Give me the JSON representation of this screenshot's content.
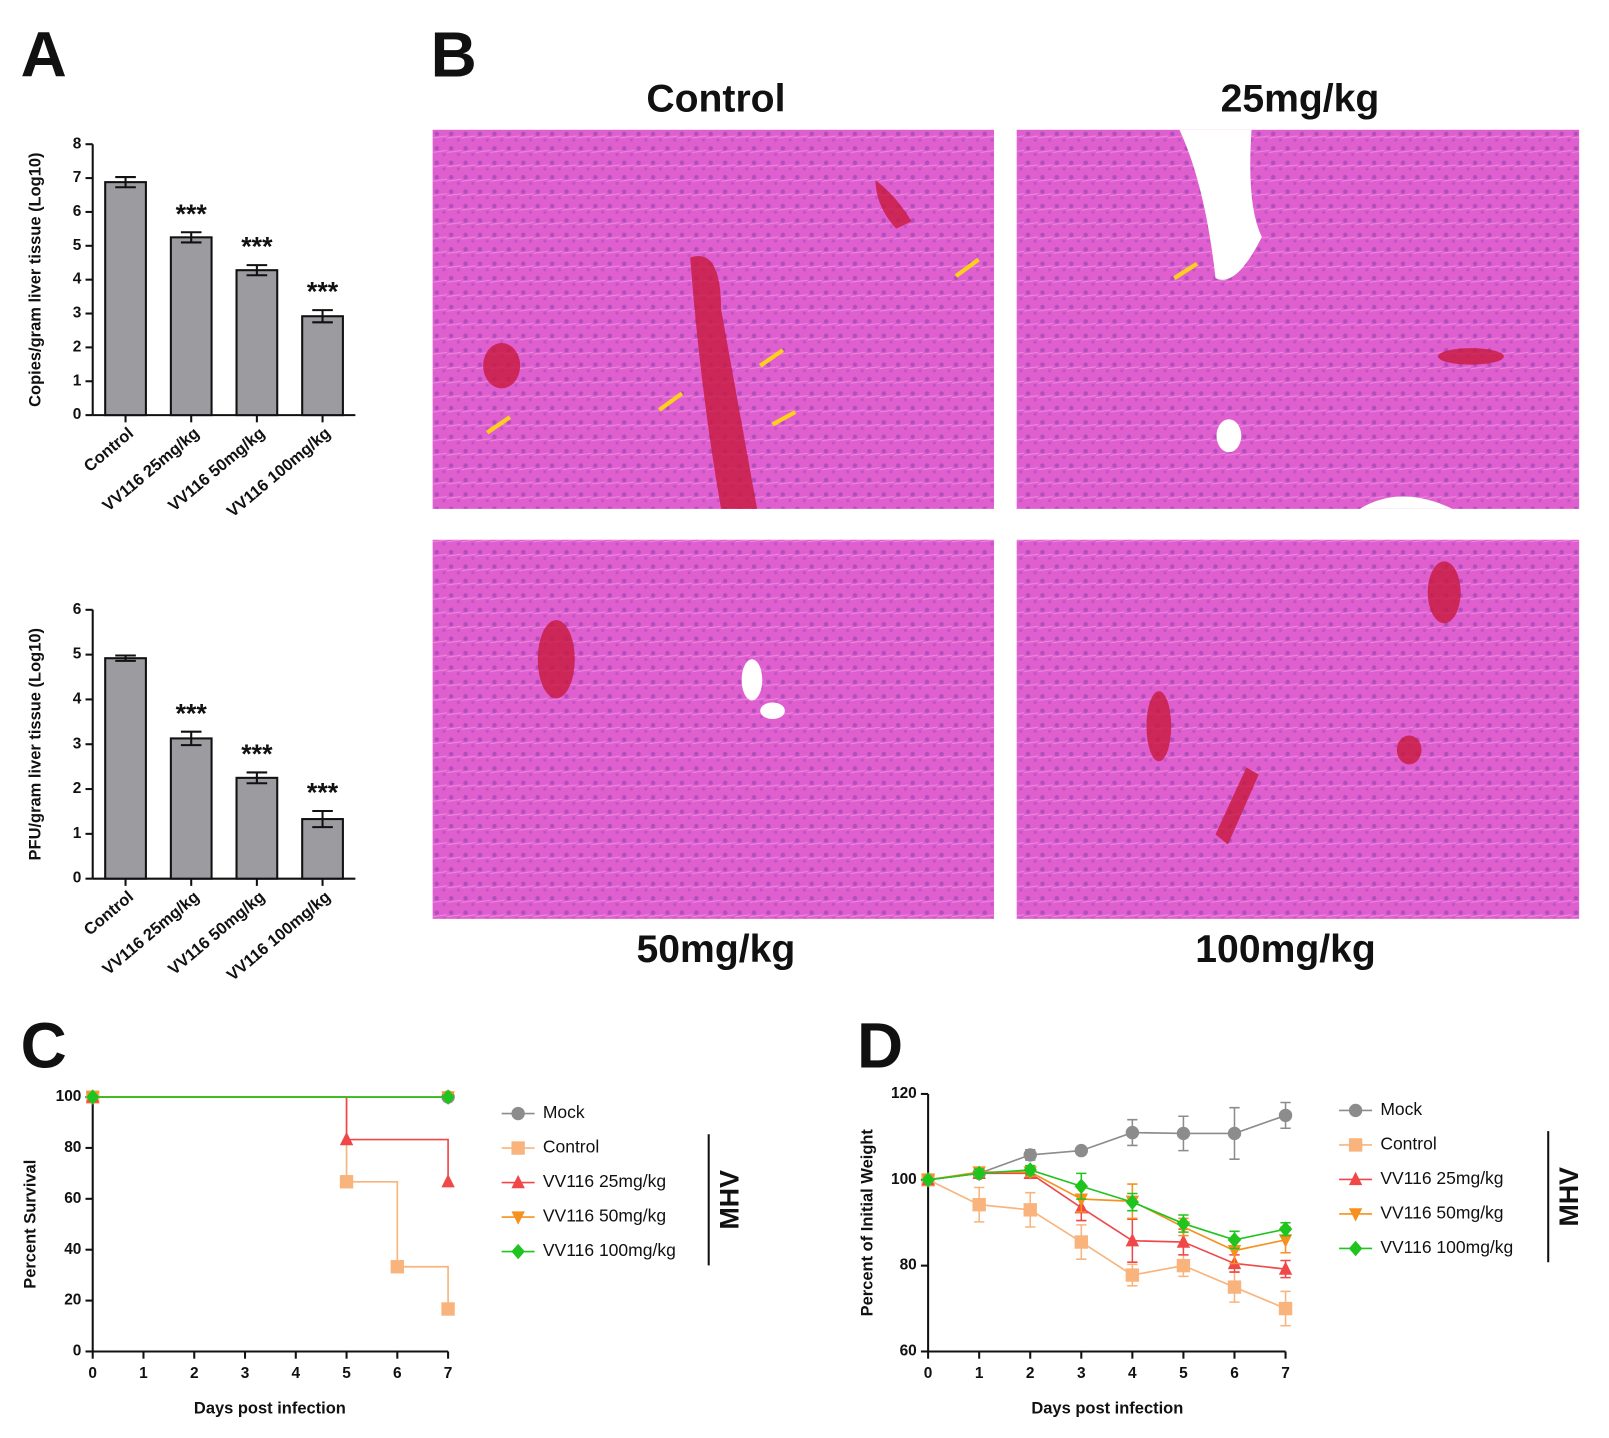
{
  "panel_labels": [
    "A",
    "B",
    "C",
    "D"
  ],
  "histology": {
    "titles": [
      "Control",
      "25mg/kg",
      "50mg/kg",
      "100mg/kg"
    ]
  },
  "chart_data": [
    {
      "type": "bar",
      "ylabel": "Copies/gram liver tissue (Log10)",
      "categories": [
        "Control",
        "VV116 25mg/kg",
        "VV116 50mg/kg",
        "VV116 100mg/kg"
      ],
      "values": [
        6.88,
        5.25,
        4.28,
        2.92
      ],
      "errors": [
        0.15,
        0.15,
        0.15,
        0.18
      ],
      "significance": [
        null,
        "***",
        "***",
        "***"
      ],
      "color": "#9b9ba0",
      "ylim": [
        0,
        8
      ],
      "yticks": [
        0,
        1,
        2,
        3,
        4,
        5,
        6,
        7,
        8
      ]
    },
    {
      "type": "bar",
      "ylabel": "PFU/gram liver tissue (Log10)",
      "categories": [
        "Control",
        "VV116 25mg/kg",
        "VV116 50mg/kg",
        "VV116 100mg/kg"
      ],
      "values": [
        4.92,
        3.13,
        2.25,
        1.33
      ],
      "errors": [
        0.06,
        0.15,
        0.12,
        0.18
      ],
      "significance": [
        null,
        "***",
        "***",
        "***"
      ],
      "color": "#9b9ba0",
      "ylim": [
        0,
        6
      ],
      "yticks": [
        0,
        1,
        2,
        3,
        4,
        5,
        6
      ]
    },
    {
      "type": "line",
      "step": true,
      "xlabel": "Days post infection",
      "ylabel": "Percent Survival",
      "x": [
        0,
        1,
        2,
        3,
        4,
        5,
        6,
        7
      ],
      "xlim": [
        0,
        7
      ],
      "xticks": [
        0,
        1,
        2,
        3,
        4,
        5,
        6,
        7
      ],
      "ylim": [
        0,
        100
      ],
      "yticks": [
        0,
        20,
        40,
        60,
        80,
        100
      ],
      "legend_group": "MHV",
      "series": [
        {
          "name": "Mock",
          "color": "#8c8c8c",
          "marker": "circle",
          "values": [
            100,
            100,
            100,
            100,
            100,
            100,
            100,
            100
          ]
        },
        {
          "name": "Control",
          "color": "#f8b47c",
          "marker": "square",
          "values": [
            100,
            100,
            100,
            100,
            100,
            66.7,
            33.3,
            16.7
          ]
        },
        {
          "name": "VV116 25mg/kg",
          "color": "#f04848",
          "marker": "triangle-up",
          "values": [
            100,
            100,
            100,
            100,
            100,
            83.3,
            83.3,
            66.7
          ]
        },
        {
          "name": "VV116 50mg/kg",
          "color": "#f7901c",
          "marker": "triangle-down",
          "values": [
            100,
            100,
            100,
            100,
            100,
            100,
            100,
            100
          ]
        },
        {
          "name": "VV116 100mg/kg",
          "color": "#1fc41f",
          "marker": "diamond",
          "values": [
            100,
            100,
            100,
            100,
            100,
            100,
            100,
            100
          ]
        }
      ]
    },
    {
      "type": "line",
      "xlabel": "Days post infection",
      "ylabel": "Percent of Initial Weight",
      "x": [
        0,
        1,
        2,
        3,
        4,
        5,
        6,
        7
      ],
      "xlim": [
        0,
        7
      ],
      "xticks": [
        0,
        1,
        2,
        3,
        4,
        5,
        6,
        7
      ],
      "ylim": [
        60,
        120
      ],
      "yticks": [
        60,
        80,
        100,
        120
      ],
      "legend_group": "MHV",
      "series": [
        {
          "name": "Mock",
          "color": "#8c8c8c",
          "marker": "circle",
          "values": [
            100,
            101.5,
            105.8,
            106.8,
            111,
            110.8,
            110.8,
            115
          ],
          "errors": [
            0,
            1,
            1.2,
            0.5,
            3,
            4,
            6,
            3
          ]
        },
        {
          "name": "Control",
          "color": "#f8b47c",
          "marker": "square",
          "values": [
            100,
            94.2,
            93,
            85.5,
            77.8,
            80,
            75,
            70
          ],
          "errors": [
            0,
            4,
            4,
            4,
            2.5,
            2.5,
            3.5,
            4
          ]
        },
        {
          "name": "VV116 25mg/kg",
          "color": "#f04848",
          "marker": "triangle-up",
          "values": [
            100,
            101.5,
            101.5,
            93.5,
            85.8,
            85.5,
            80.5,
            79.2
          ],
          "errors": [
            0,
            1,
            1,
            3,
            5,
            3,
            2,
            2
          ]
        },
        {
          "name": "VV116 50mg/kg",
          "color": "#f7901c",
          "marker": "triangle-down",
          "values": [
            100,
            101.8,
            101.8,
            95.5,
            95,
            89,
            83.5,
            86
          ],
          "errors": [
            0,
            1,
            1,
            3,
            4,
            2,
            3,
            3
          ]
        },
        {
          "name": "VV116 100mg/kg",
          "color": "#1fc41f",
          "marker": "diamond",
          "values": [
            100,
            101.5,
            102.3,
            98.5,
            94.8,
            89.8,
            86,
            88.5
          ],
          "errors": [
            0,
            1,
            1,
            3,
            2,
            2,
            2,
            1.5
          ]
        }
      ]
    }
  ]
}
